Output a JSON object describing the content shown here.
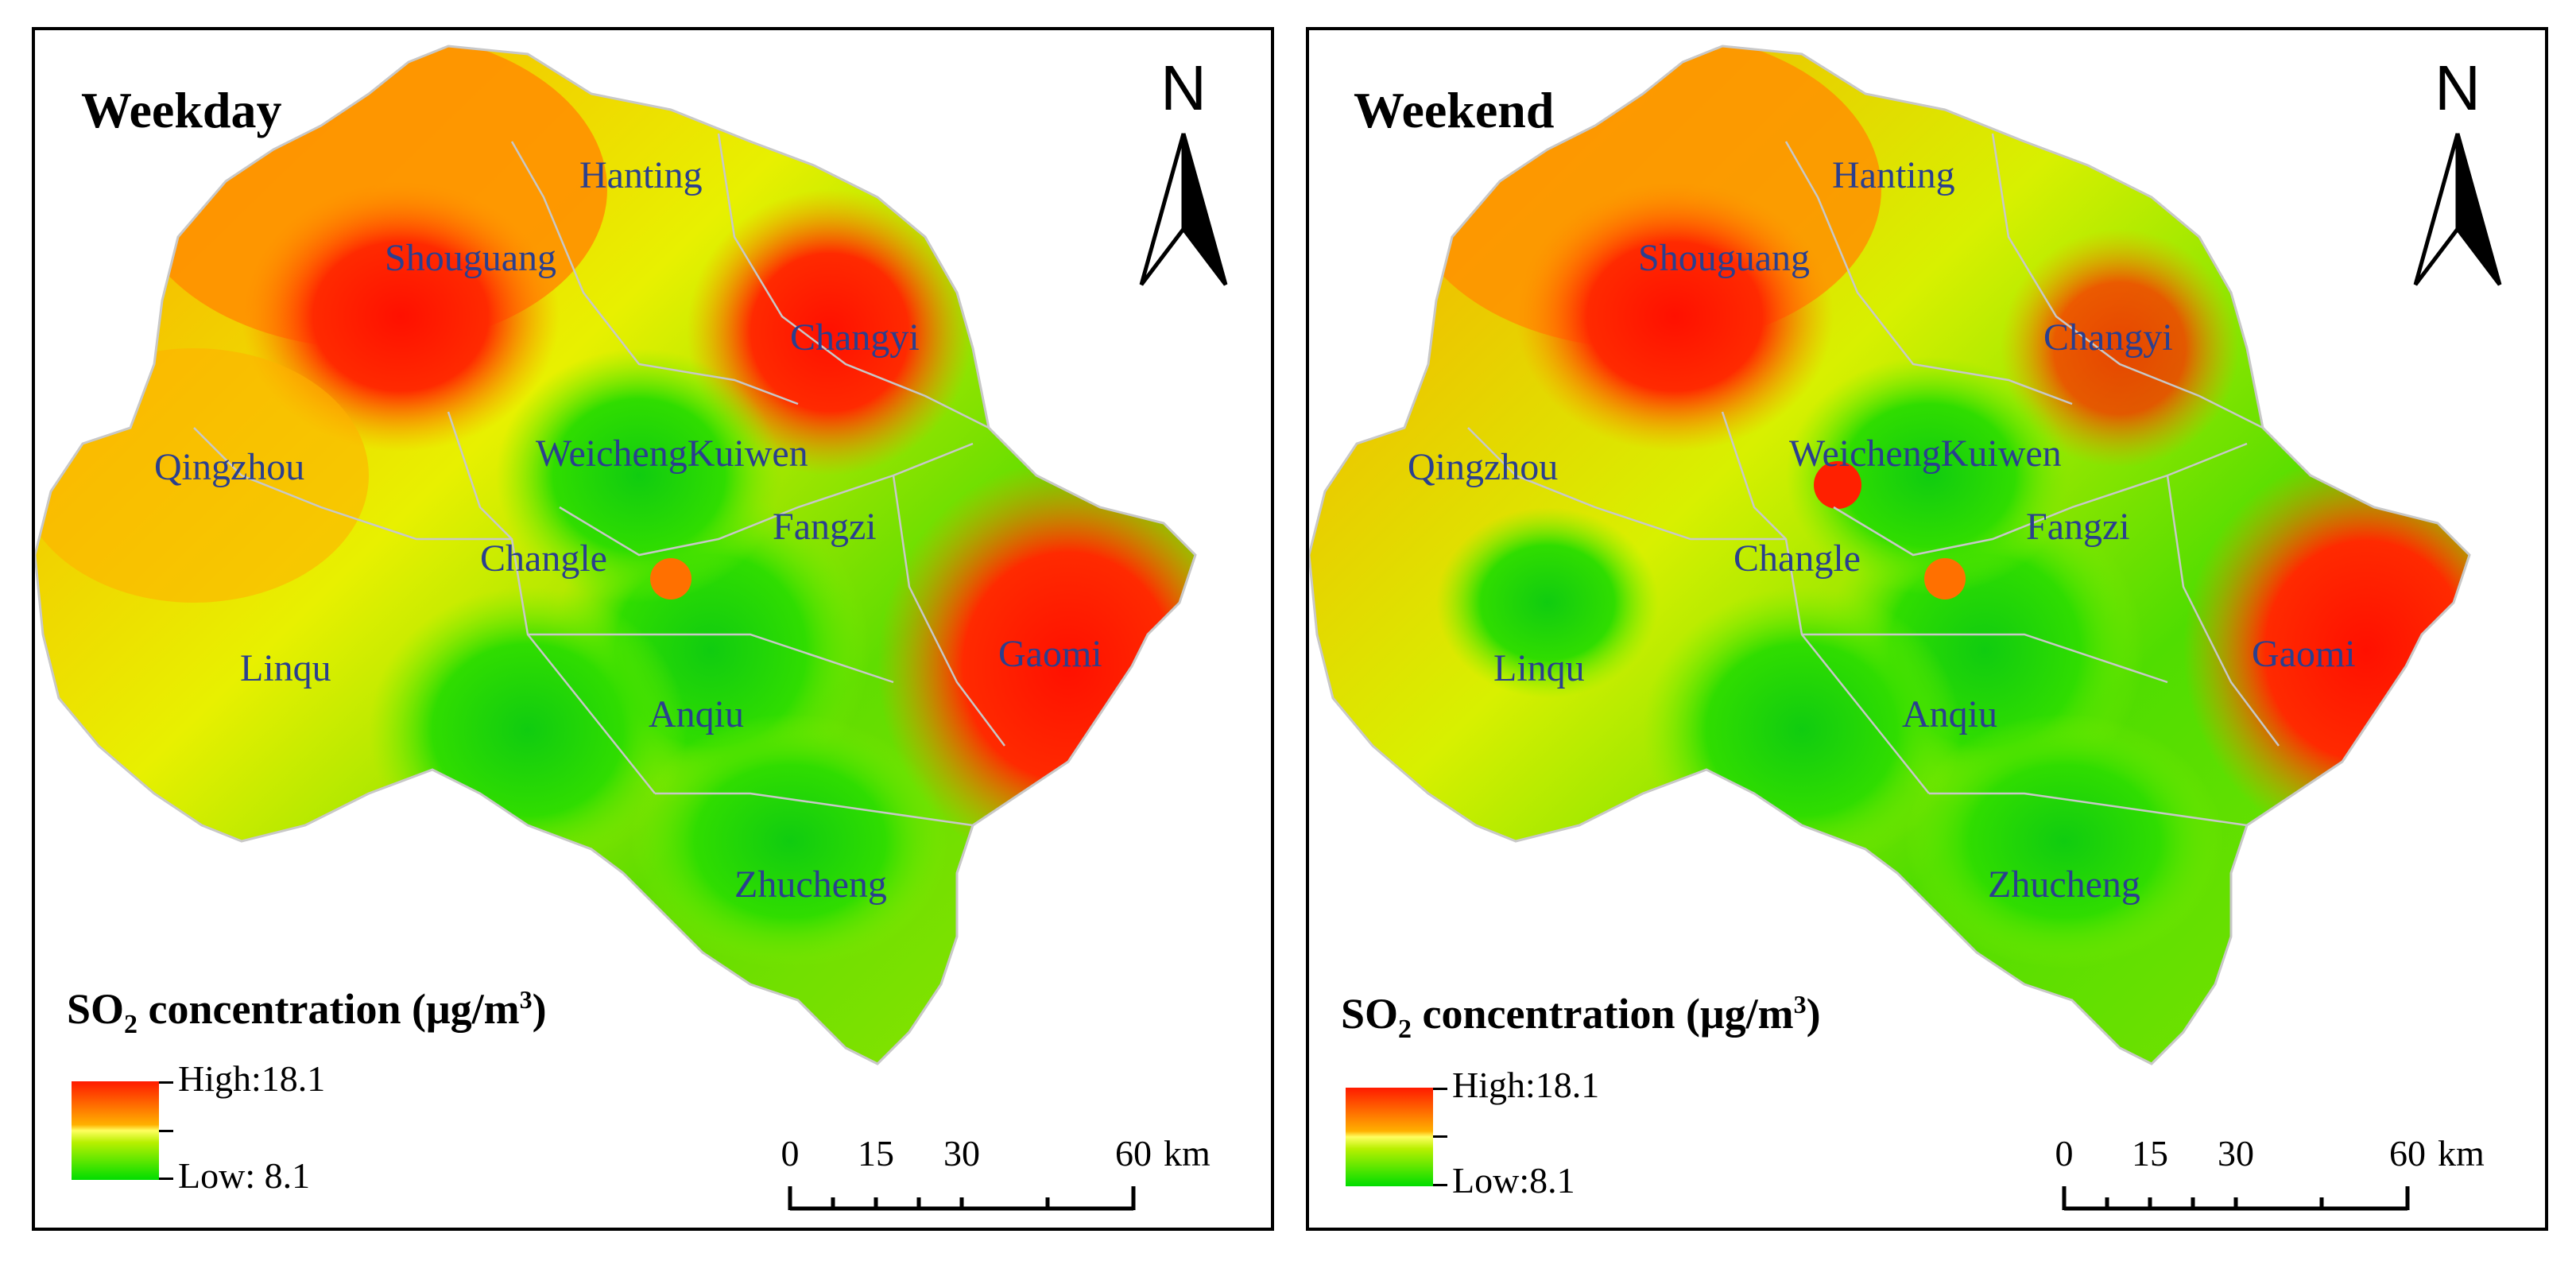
{
  "panels": [
    {
      "title": "Weekday",
      "districts": [
        "Hanting",
        "Shouguang",
        "Changyi",
        "Qingzhou",
        "WeichengKuiwen",
        "Fangzi",
        "Changle",
        "Linqu",
        "Gaomi",
        "Anqiu",
        "Zhucheng"
      ],
      "legend": {
        "title_prefix": "SO",
        "title_sub": "2",
        "title_mid": " concentration (μg/m",
        "title_sup": "3",
        "title_end": ")",
        "high": "High:18.1",
        "low": "Low: 8.1"
      },
      "north_label": "N",
      "scale": {
        "ticks": [
          "0",
          "15",
          "30",
          "60"
        ],
        "unit": "km"
      }
    },
    {
      "title": "Weekend",
      "districts": [
        "Hanting",
        "Shouguang",
        "Changyi",
        "Qingzhou",
        "WeichengKuiwen",
        "Fangzi",
        "Changle",
        "Linqu",
        "Gaomi",
        "Anqiu",
        "Zhucheng"
      ],
      "legend": {
        "title_prefix": "SO",
        "title_sub": "2",
        "title_mid": " concentration (μg/m",
        "title_sup": "3",
        "title_end": ")",
        "high": "High:18.1",
        "low": "Low:8.1"
      },
      "north_label": "N",
      "scale": {
        "ticks": [
          "0",
          "15",
          "30",
          "60"
        ],
        "unit": "km"
      }
    }
  ],
  "colors": {
    "high": "#ff1a00",
    "mid": "#ffff40",
    "low": "#00dd00",
    "label": "#2a3f8f"
  }
}
